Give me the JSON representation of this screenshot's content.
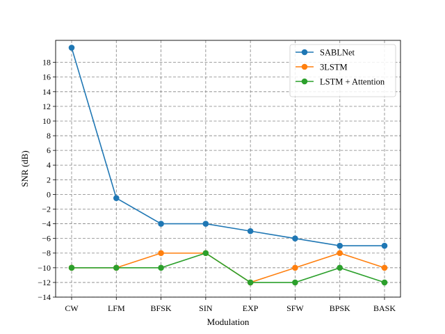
{
  "chart_data": {
    "type": "line",
    "xlabel": "Modulation",
    "ylabel": "SNR (dB)",
    "categories": [
      "CW",
      "LFM",
      "BFSK",
      "SIN",
      "EXP",
      "SFW",
      "BPSK",
      "BASK"
    ],
    "ylim": [
      -14,
      21
    ],
    "yticks": [
      -14,
      -12,
      -10,
      -8,
      -6,
      -4,
      -2,
      0,
      2,
      4,
      6,
      8,
      10,
      12,
      14,
      16,
      18
    ],
    "ytick_labels": [
      "−14",
      "−12",
      "−10",
      "−8",
      "−6",
      "−4",
      "−2",
      "0",
      "2",
      "4",
      "6",
      "8",
      "10",
      "12",
      "14",
      "16",
      "18"
    ],
    "grid": true,
    "legend_position": "top-right",
    "series": [
      {
        "name": "SABLNet",
        "color": "#1f77b4",
        "values": [
          20,
          -0.5,
          -4,
          -4,
          -5,
          -6,
          -7,
          -7
        ]
      },
      {
        "name": "3LSTM",
        "color": "#ff7f0e",
        "values": [
          -10,
          -10,
          -8,
          -8,
          -12,
          -10,
          -8,
          -10
        ]
      },
      {
        "name": "LSTM + Attention",
        "color": "#2ca02c",
        "values": [
          -10,
          -10,
          -10,
          -8,
          -12,
          -12,
          -10,
          -12
        ]
      }
    ]
  }
}
